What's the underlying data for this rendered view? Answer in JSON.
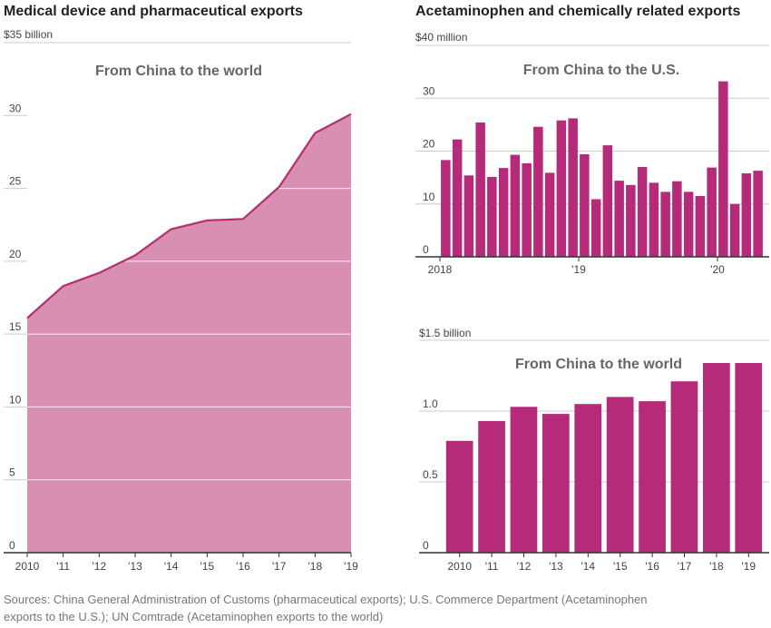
{
  "chart_data": [
    {
      "id": "medical",
      "type": "area",
      "title": "Medical device and pharmaceutical exports",
      "subtitle": "From China to the world",
      "ylabel": "",
      "y_unit_label": "$35 billion",
      "ylim": [
        0,
        35
      ],
      "yticks": [
        0,
        5,
        10,
        15,
        20,
        25,
        30
      ],
      "x": [
        "2010",
        "'11",
        "'12",
        "'13",
        "'14",
        "'15",
        "'16",
        "'17",
        "'18",
        "'19"
      ],
      "values": [
        16.1,
        18.3,
        19.2,
        20.4,
        22.2,
        22.8,
        22.9,
        25.1,
        28.8,
        30.1
      ],
      "color": "#d98fb1",
      "line_color": "#b6306f",
      "grid": true
    },
    {
      "id": "acet-us",
      "type": "bar",
      "title": "Acetaminophen and chemically related exports",
      "subtitle": "From China to the U.S.",
      "y_unit_label": "$40 million",
      "ylim": [
        0,
        40
      ],
      "yticks": [
        0,
        10,
        20,
        30
      ],
      "x_tick_labels": [
        {
          "label": "2018",
          "index": 0
        },
        {
          "label": "'19",
          "index": 12
        },
        {
          "label": "'20",
          "index": 24
        }
      ],
      "values": [
        18.3,
        22.2,
        15.4,
        25.4,
        15.1,
        16.8,
        19.3,
        17.7,
        24.6,
        15.9,
        25.8,
        26.2,
        19.4,
        10.9,
        21.1,
        14.4,
        13.6,
        17.0,
        14.0,
        12.3,
        14.3,
        12.3,
        11.5,
        16.9,
        33.2,
        10.0,
        15.8,
        16.3
      ],
      "color": "#b52a79",
      "grid": true
    },
    {
      "id": "acet-world",
      "type": "bar",
      "subtitle": "From China to the world",
      "y_unit_label": "$1.5 billion",
      "ylim": [
        0,
        1.5
      ],
      "yticks": [
        0,
        0.5,
        1.0
      ],
      "ytick_labels": [
        "0",
        "0.5",
        "1.0"
      ],
      "categories": [
        "2010",
        "'11",
        "'12",
        "'13",
        "'14",
        "'15",
        "'16",
        "'17",
        "'18",
        "'19"
      ],
      "values": [
        0.79,
        0.93,
        1.03,
        0.98,
        1.05,
        1.1,
        1.07,
        1.21,
        1.34,
        1.34
      ],
      "color": "#b52a79",
      "grid": true
    }
  ],
  "footer": {
    "source_line1": "Sources: China General Administration of Customs (pharmaceutical exports); U.S. Commerce Department (Acetaminophen",
    "source_line2": "exports to the U.S.); UN Comtrade (Acetaminophen exports to the world)"
  }
}
